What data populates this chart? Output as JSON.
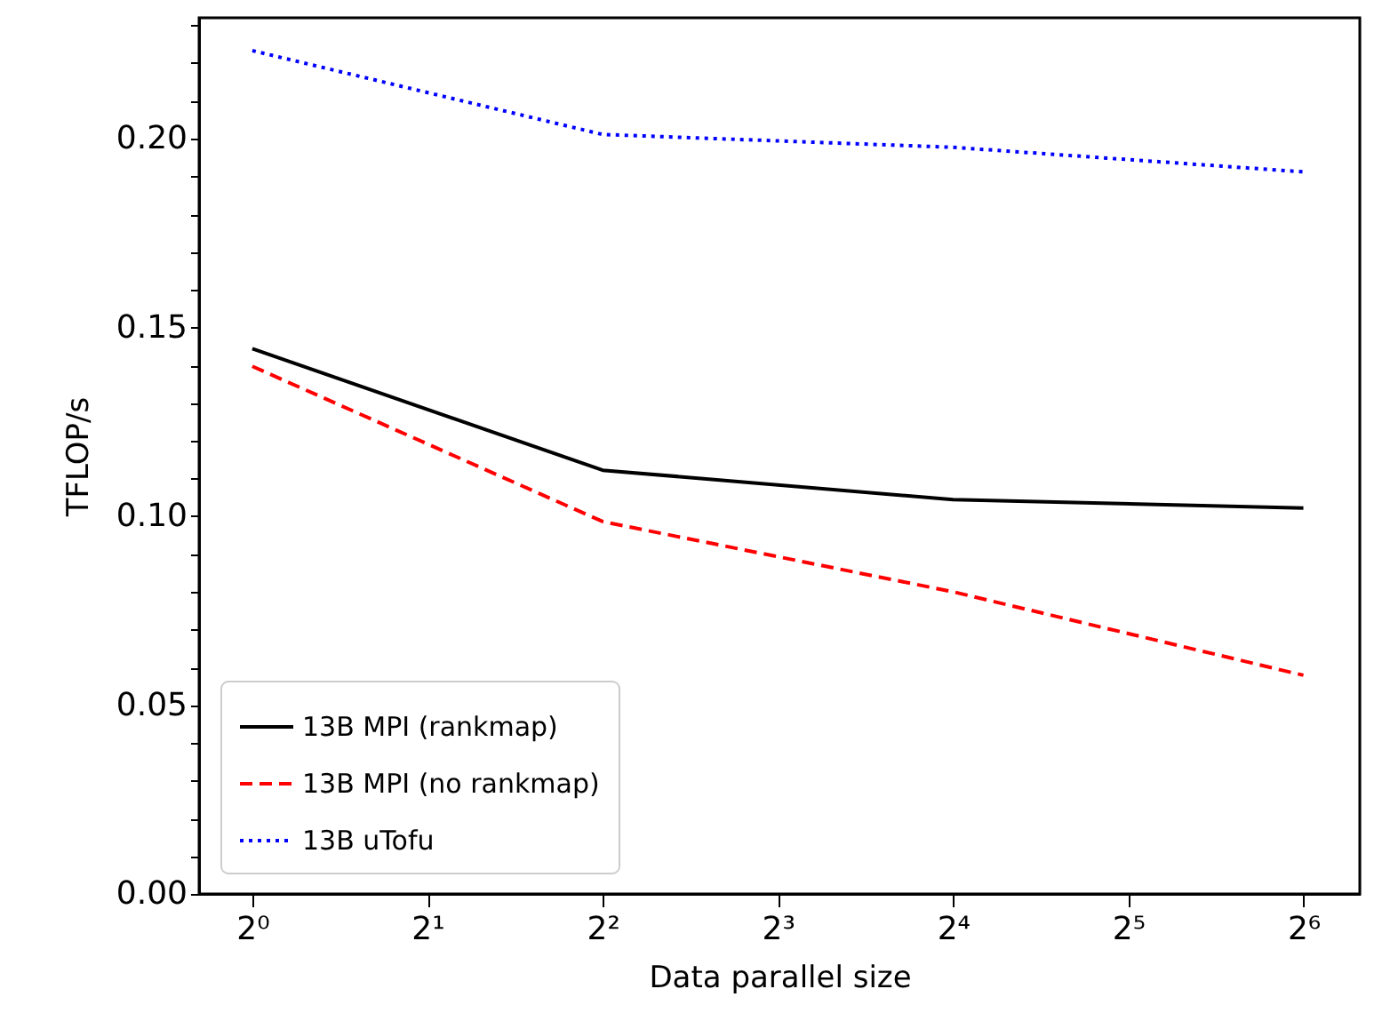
{
  "chart_data": {
    "type": "line",
    "xlabel": "Data parallel size",
    "ylabel": "TFLOP/s",
    "x": [
      1,
      4,
      16,
      64
    ],
    "series": [
      {
        "name": "13B MPI (rankmap)",
        "color": "#000000",
        "line_style": "solid",
        "values": [
          0.1444,
          0.1122,
          0.1044,
          0.1022
        ]
      },
      {
        "name": "13B MPI (no rankmap)",
        "color": "#ff0000",
        "line_style": "dashed",
        "values": [
          0.1397,
          0.0986,
          0.08,
          0.0579
        ]
      },
      {
        "name": "13B uTofu",
        "color": "#0000ff",
        "line_style": "dotted",
        "values": [
          0.2233,
          0.2011,
          0.1977,
          0.1912
        ]
      }
    ],
    "log": "x",
    "xlim": [
      0.81,
      80
    ],
    "xticks": [
      {
        "value": 1,
        "label": "2⁰"
      },
      {
        "value": 2,
        "label": "2¹"
      },
      {
        "value": 4,
        "label": "2²"
      },
      {
        "value": 8,
        "label": "2³"
      },
      {
        "value": 16,
        "label": "2⁴"
      },
      {
        "value": 32,
        "label": "2⁵"
      },
      {
        "value": 64,
        "label": "2⁶"
      }
    ],
    "ylim": [
      0,
      0.232
    ],
    "yticks": [
      {
        "value": 0,
        "label": "0.00"
      },
      {
        "value": 0.01,
        "label": null
      },
      {
        "value": 0.02,
        "label": null
      },
      {
        "value": 0.03,
        "label": null
      },
      {
        "value": 0.04,
        "label": null
      },
      {
        "value": 0.05,
        "label": "0.05"
      },
      {
        "value": 0.06,
        "label": null
      },
      {
        "value": 0.07,
        "label": null
      },
      {
        "value": 0.08,
        "label": null
      },
      {
        "value": 0.09,
        "label": null
      },
      {
        "value": 0.1,
        "label": "0.10"
      },
      {
        "value": 0.11,
        "label": null
      },
      {
        "value": 0.12,
        "label": null
      },
      {
        "value": 0.13,
        "label": null
      },
      {
        "value": 0.14,
        "label": null
      },
      {
        "value": 0.15,
        "label": "0.15"
      },
      {
        "value": 0.16,
        "label": null
      },
      {
        "value": 0.17,
        "label": null
      },
      {
        "value": 0.18,
        "label": null
      },
      {
        "value": 0.19,
        "label": null
      },
      {
        "value": 0.2,
        "label": "0.20"
      },
      {
        "value": 0.21,
        "label": null
      },
      {
        "value": 0.22,
        "label": null
      },
      {
        "value": 0.23,
        "label": null
      }
    ],
    "grid": false,
    "legend": "bottom left"
  }
}
